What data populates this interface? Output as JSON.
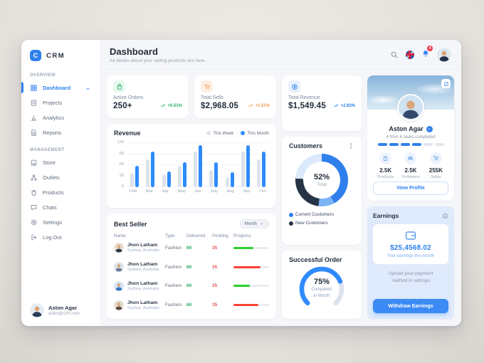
{
  "app": {
    "name": "CRM",
    "logo_letter": "C"
  },
  "colors": {
    "accent": "#2f80ed",
    "green": "#27ae60",
    "orange": "#f2994a",
    "red": "#eb5757",
    "dark": "#263445"
  },
  "sidebar": {
    "sections": [
      {
        "label": "OVERVIEW",
        "items": [
          {
            "label": "Dashboard",
            "icon": "dashboard-icon",
            "active": true,
            "chevron": "up"
          },
          {
            "label": "Projects",
            "icon": "projects-icon"
          },
          {
            "label": "Analytics",
            "icon": "analytics-icon"
          },
          {
            "label": "Reports",
            "icon": "reports-icon"
          }
        ]
      },
      {
        "label": "MANAGEMENT",
        "items": [
          {
            "label": "Store",
            "icon": "store-icon"
          },
          {
            "label": "Outlets",
            "icon": "outlets-icon"
          },
          {
            "label": "Products",
            "icon": "products-icon"
          },
          {
            "label": "Chats",
            "icon": "chats-icon"
          },
          {
            "label": "Settings",
            "icon": "settings-icon"
          },
          {
            "label": "Log Out",
            "icon": "logout-icon"
          }
        ]
      }
    ],
    "user": {
      "name": "Aston Agar",
      "email": "aston@crm.com"
    }
  },
  "header": {
    "title": "Dashboard",
    "subtitle": "All details about your selling products are here..",
    "notification_count": "4"
  },
  "stats": [
    {
      "label": "Active Orders",
      "value": "250+",
      "delta": "+0.51%",
      "icon": "basket-icon",
      "color": "#27ae60",
      "tint": "#e7f8ee"
    },
    {
      "label": "Total Sells",
      "value": "$2,968.05",
      "delta": "+1.51%",
      "icon": "cart-icon",
      "color": "#f2994a",
      "tint": "#fdf0e3"
    },
    {
      "label": "Total Revenue",
      "value": "$1,549.45",
      "delta": "+2.83%",
      "icon": "coin-icon",
      "color": "#2f80ed",
      "tint": "#e8f1fd"
    }
  ],
  "chart_data": {
    "type": "bar",
    "title": "Revenue",
    "categories": [
      "Feb",
      "Mar",
      "Apr",
      "May",
      "Jun",
      "July",
      "Aug",
      "Sep",
      "Oct"
    ],
    "series": [
      {
        "name": "This Week",
        "color": "#dde3ec",
        "values": [
          38,
          75,
          35,
          58,
          97,
          46,
          27,
          97,
          75
        ]
      },
      {
        "name": "This Month",
        "color": "#2f8bfd",
        "values": [
          58,
          97,
          42,
          68,
          115,
          68,
          41,
          115,
          97
        ]
      }
    ],
    "ylim": [
      0,
      120
    ],
    "yticks": [
      0,
      30,
      60,
      90,
      120
    ],
    "legend_position": "top-right",
    "grid": true
  },
  "customers": {
    "title": "Customers",
    "center_value": "52%",
    "center_label": "Total",
    "segments": [
      {
        "color": "#2f80ed",
        "pct": 42
      },
      {
        "color": "#7db4f5",
        "pct": 10
      },
      {
        "color": "#263445",
        "pct": 24
      },
      {
        "color": "#dbe9fb",
        "pct": 24
      }
    ],
    "legend": [
      {
        "label": "Current Customers",
        "color": "#2f80ed"
      },
      {
        "label": "New Customers",
        "color": "#263445"
      }
    ]
  },
  "best_seller": {
    "title": "Best Seller",
    "filter": "Month",
    "headers": [
      "Name",
      "Type",
      "Delivered",
      "Pending",
      "Progress"
    ],
    "rows": [
      {
        "name": "Jhon Latham",
        "location": "Sydney, Australia",
        "type": "Fashion",
        "delivered": "60",
        "pending": "35",
        "progress": 55,
        "progress_color": "#2ad12a"
      },
      {
        "name": "Jhon Latham",
        "location": "Sydney, Australia",
        "type": "Fashion",
        "delivered": "60",
        "pending": "35",
        "progress": 75,
        "progress_color": "#f94036"
      },
      {
        "name": "Jhon Latham",
        "location": "Sydney, Australia",
        "type": "Fashion",
        "delivered": "60",
        "pending": "35",
        "progress": 45,
        "progress_color": "#2ad12a"
      },
      {
        "name": "Jhon Latham",
        "location": "Sydney, Australia",
        "type": "Fashion",
        "delivered": "60",
        "pending": "35",
        "progress": 70,
        "progress_color": "#f94036"
      }
    ]
  },
  "successful_order": {
    "title": "Successful Order",
    "percent": 75,
    "percent_label": "75%",
    "caption_line1": "Completed",
    "caption_line2": "in Month"
  },
  "profile": {
    "name": "Aston Agar",
    "tasks_caption": "4 from 6 tasks completed",
    "tasks_completed": 4,
    "tasks_total": 6,
    "stats": [
      {
        "value": "2.5K",
        "label": "Products",
        "icon": "products-icon"
      },
      {
        "value": "2.5K",
        "label": "Followers",
        "icon": "people-icon"
      },
      {
        "value": "255K",
        "label": "Sales",
        "icon": "cart-icon"
      }
    ],
    "button": "View Profile"
  },
  "earnings": {
    "title": "Earnings",
    "amount": "$25,4568.02",
    "caption": "Your earnings this month",
    "note_line1": "Upload your payment",
    "note_line2": "method in settings",
    "button": "Withdraw Earnings"
  }
}
